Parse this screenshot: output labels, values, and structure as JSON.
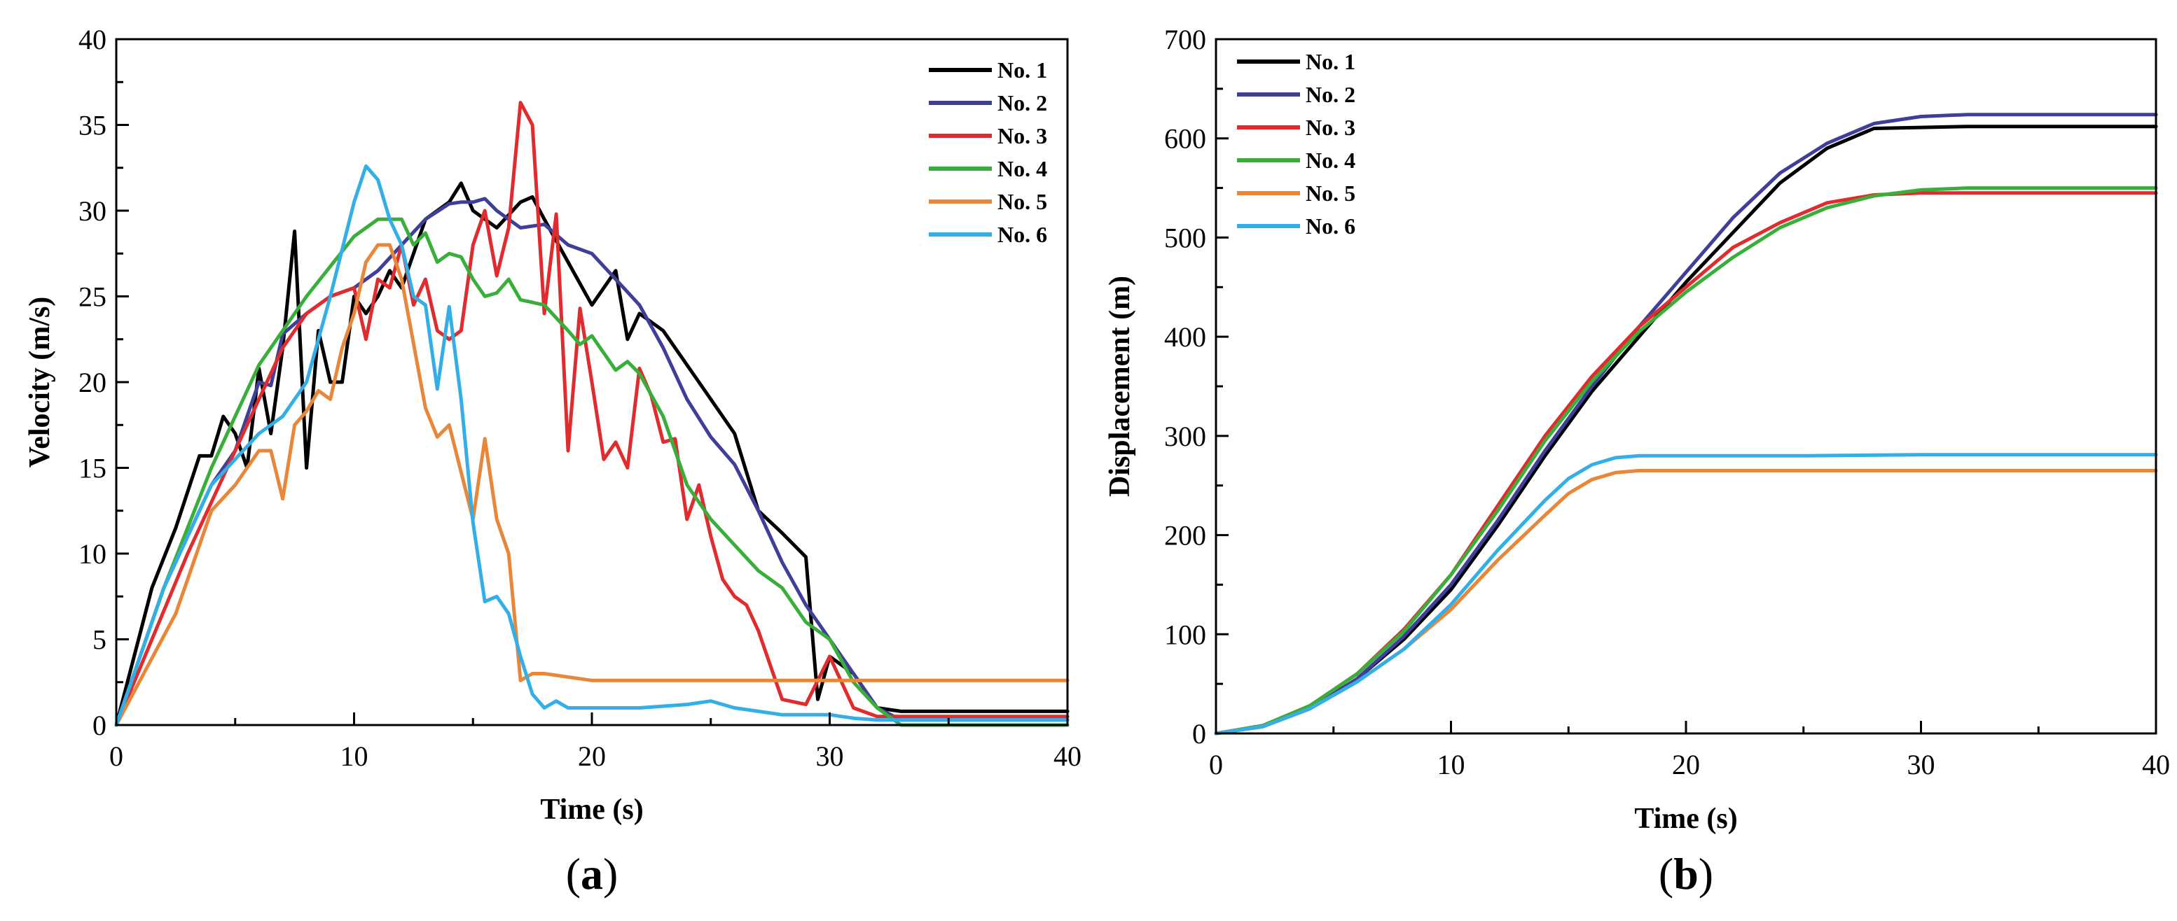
{
  "colors": {
    "No. 1": "#000000",
    "No. 2": "#3f3f9a",
    "No. 3": "#e02b2f",
    "No. 4": "#3aae3a",
    "No. 5": "#e8873a",
    "No. 6": "#33aee6"
  },
  "chart_data": [
    {
      "type": "line",
      "panel_label": {
        "open": "(",
        "letter": "a",
        "close": ")"
      },
      "title": "",
      "xlabel": "Time (s)",
      "ylabel": "Velocity (m/s)",
      "xlim": [
        0,
        40
      ],
      "ylim": [
        0,
        40
      ],
      "xticks": [
        0,
        10,
        20,
        30,
        40
      ],
      "yticks": [
        0,
        5,
        10,
        15,
        20,
        25,
        30,
        35,
        40
      ],
      "grid": false,
      "legend": "top-right",
      "series": [
        {
          "name": "No. 1",
          "x": [
            0,
            1.5,
            2.5,
            3.5,
            4,
            4.5,
            5,
            5.5,
            6,
            6.5,
            7,
            7.5,
            8,
            8.5,
            9,
            9.5,
            10,
            10.5,
            11,
            11.5,
            12,
            13,
            14,
            14.5,
            15,
            16,
            17,
            17.5,
            18,
            19,
            20,
            21,
            21.5,
            22,
            23,
            24,
            25,
            26,
            27,
            28,
            29,
            29.5,
            30,
            31,
            32,
            33,
            40
          ],
          "y": [
            0,
            8,
            11.5,
            15.7,
            15.7,
            18,
            17,
            15,
            20.8,
            17,
            22,
            28.8,
            15,
            23,
            20,
            20,
            25,
            24,
            25,
            26.5,
            25.5,
            29.5,
            30.5,
            31.6,
            30,
            29,
            30.5,
            30.8,
            29.5,
            27,
            24.5,
            26.5,
            22.5,
            24,
            23,
            21,
            19,
            17,
            12.5,
            11.2,
            9.8,
            1.5,
            4,
            3,
            1,
            0.8,
            0.8
          ]
        },
        {
          "name": "No. 2",
          "x": [
            0,
            2,
            4,
            5,
            6,
            6.5,
            7,
            8,
            9,
            10,
            11,
            12,
            13,
            14,
            14.5,
            15,
            15.5,
            16,
            17,
            18,
            19,
            20,
            21,
            22,
            23,
            24,
            25,
            26,
            27,
            28,
            29,
            30,
            31,
            32,
            33,
            40
          ],
          "y": [
            0,
            8,
            14,
            16,
            20,
            19.8,
            22.8,
            24,
            25,
            25.5,
            26.5,
            28,
            29.5,
            30.4,
            30.5,
            30.5,
            30.7,
            30,
            29,
            29.2,
            28,
            27.5,
            26,
            24.5,
            22,
            19,
            16.8,
            15.2,
            12.5,
            9.5,
            7,
            5,
            3,
            1,
            0.3,
            0.3
          ]
        },
        {
          "name": "No. 3",
          "x": [
            0,
            3,
            5,
            7,
            8,
            9,
            10,
            10.5,
            11,
            11.5,
            12,
            12.5,
            13,
            13.5,
            14,
            14.5,
            15,
            15.5,
            16,
            16.5,
            17,
            17.5,
            18,
            18.5,
            19,
            19.5,
            20,
            20.5,
            21,
            21.5,
            22,
            22.5,
            23,
            23.5,
            24,
            24.5,
            25,
            25.5,
            26,
            26.5,
            27,
            27.5,
            28,
            29,
            30,
            31,
            32,
            33,
            40
          ],
          "y": [
            0,
            10,
            16,
            22,
            24,
            25,
            25.5,
            22.5,
            26,
            25.5,
            28,
            24.5,
            26,
            23,
            22.5,
            23,
            28,
            30,
            26.2,
            29,
            36.3,
            35,
            24,
            29.8,
            16,
            24.3,
            20,
            15.5,
            16.5,
            15,
            20.8,
            19.2,
            16.5,
            16.7,
            12,
            14,
            11,
            8.5,
            7.5,
            7,
            5.5,
            3.5,
            1.5,
            1.2,
            4,
            1,
            0.5,
            0.5,
            0.5
          ]
        },
        {
          "name": "No. 4",
          "x": [
            0,
            2,
            4,
            6,
            8,
            10,
            11,
            12,
            12.5,
            13,
            13.5,
            14,
            14.5,
            15,
            15.5,
            16,
            16.5,
            17,
            18,
            19,
            19.5,
            20,
            21,
            21.5,
            22,
            23,
            24,
            25,
            26,
            27,
            28,
            29,
            30,
            31,
            32,
            33,
            40
          ],
          "y": [
            0,
            8,
            15,
            21,
            25,
            28.5,
            29.5,
            29.5,
            28,
            28.7,
            27,
            27.5,
            27.3,
            26,
            25,
            25.2,
            26,
            24.8,
            24.5,
            23,
            22.2,
            22.7,
            20.7,
            21.2,
            20.5,
            18,
            14,
            12,
            10.5,
            9,
            8,
            6,
            5,
            2.5,
            1,
            0,
            0
          ]
        },
        {
          "name": "No. 5",
          "x": [
            0,
            2.5,
            3,
            4,
            5,
            6,
            6.5,
            7,
            7.5,
            8,
            8.5,
            9,
            9.5,
            10,
            10.5,
            11,
            11.5,
            12,
            13,
            13.5,
            14,
            15,
            15.5,
            16,
            16.5,
            17,
            17.5,
            18,
            20,
            25,
            30,
            35,
            40
          ],
          "y": [
            0,
            6.5,
            8.5,
            12.5,
            14,
            16,
            16,
            13.2,
            17.5,
            18.3,
            19.5,
            19,
            22,
            24,
            27,
            28,
            28,
            26,
            18.5,
            16.8,
            17.5,
            12,
            16.7,
            12,
            10,
            2.6,
            3,
            3,
            2.6,
            2.6,
            2.6,
            2.6,
            2.6
          ]
        },
        {
          "name": "No. 6",
          "x": [
            0,
            2,
            4,
            6,
            7,
            8,
            9,
            10,
            10.5,
            11,
            11.5,
            12,
            12.5,
            13,
            13.5,
            14,
            14.5,
            15,
            15.5,
            16,
            16.5,
            17,
            17.5,
            18,
            18.5,
            19,
            20,
            22,
            24,
            25,
            26,
            27,
            28,
            29,
            30,
            31,
            32,
            40
          ],
          "y": [
            0,
            8,
            14,
            17,
            18,
            20,
            25,
            30.5,
            32.6,
            31.8,
            29.5,
            28,
            25,
            24.5,
            19.6,
            24.4,
            19,
            11.8,
            7.2,
            7.5,
            6.5,
            4,
            1.8,
            1,
            1.4,
            1,
            1,
            1,
            1.2,
            1.4,
            1,
            0.8,
            0.6,
            0.6,
            0.6,
            0.4,
            0.3,
            0.3
          ]
        }
      ]
    },
    {
      "type": "line",
      "panel_label": {
        "open": "(",
        "letter": "b",
        "close": ")"
      },
      "title": "",
      "xlabel": "Time (s)",
      "ylabel": "Displacement (m)",
      "xlim": [
        0,
        40
      ],
      "ylim": [
        0,
        700
      ],
      "xticks": [
        0,
        10,
        20,
        30,
        40
      ],
      "yticks": [
        0,
        100,
        200,
        300,
        400,
        500,
        600,
        700
      ],
      "grid": false,
      "legend": "top-left",
      "series": [
        {
          "name": "No. 1",
          "x": [
            0,
            2,
            4,
            6,
            8,
            10,
            12,
            14,
            16,
            18,
            20,
            22,
            24,
            26,
            28,
            30,
            32,
            34,
            40
          ],
          "y": [
            0,
            7,
            25,
            55,
            95,
            145,
            210,
            280,
            345,
            400,
            455,
            505,
            555,
            590,
            610,
            611,
            612,
            612,
            612
          ]
        },
        {
          "name": "No. 2",
          "x": [
            0,
            2,
            4,
            6,
            8,
            10,
            12,
            14,
            16,
            18,
            20,
            22,
            24,
            26,
            28,
            30,
            32,
            34,
            40
          ],
          "y": [
            0,
            7,
            25,
            55,
            98,
            150,
            215,
            285,
            350,
            410,
            465,
            520,
            565,
            595,
            615,
            622,
            624,
            624,
            624
          ]
        },
        {
          "name": "No. 3",
          "x": [
            0,
            2,
            4,
            6,
            8,
            10,
            12,
            14,
            16,
            18,
            20,
            22,
            24,
            26,
            28,
            30,
            32,
            40
          ],
          "y": [
            0,
            8,
            28,
            60,
            105,
            160,
            230,
            300,
            360,
            410,
            450,
            490,
            515,
            535,
            543,
            545,
            545,
            545
          ]
        },
        {
          "name": "No. 4",
          "x": [
            0,
            2,
            4,
            6,
            8,
            10,
            12,
            14,
            16,
            18,
            20,
            22,
            24,
            26,
            28,
            30,
            32,
            40
          ],
          "y": [
            0,
            8,
            28,
            60,
            103,
            160,
            225,
            295,
            355,
            405,
            445,
            480,
            510,
            530,
            542,
            548,
            550,
            550
          ]
        },
        {
          "name": "No. 5",
          "x": [
            0,
            2,
            4,
            6,
            8,
            10,
            12,
            14,
            15,
            16,
            17,
            18,
            20,
            25,
            30,
            40
          ],
          "y": [
            0,
            7,
            25,
            52,
            85,
            125,
            175,
            220,
            242,
            256,
            263,
            265,
            265,
            265,
            265,
            265
          ]
        },
        {
          "name": "No. 6",
          "x": [
            0,
            2,
            4,
            6,
            8,
            10,
            12,
            14,
            15,
            16,
            17,
            18,
            20,
            25,
            30,
            40
          ],
          "y": [
            0,
            7,
            25,
            52,
            85,
            130,
            185,
            235,
            257,
            271,
            278,
            280,
            280,
            280,
            281,
            281
          ]
        }
      ]
    }
  ]
}
